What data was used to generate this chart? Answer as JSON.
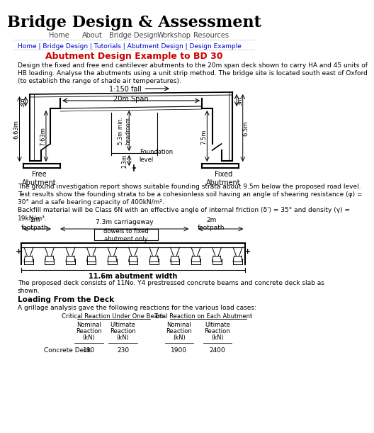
{
  "title": "Bridge Design & Assessment",
  "nav_items": [
    "Home",
    "About",
    "Bridge Design",
    "Workshop",
    "Resources"
  ],
  "breadcrumb": "Home | Bridge Design | Tutorials | Abutment Design | Design Example",
  "page_title": "Abutment Design Example to BD 30",
  "intro_text": "Design the fixed and free end cantilever abutments to the 20m span deck shown to carry HA and 45 units of\nHB loading. Analyse the abutments using a unit strip method. The bridge site is located south east of Oxford\n(to establish the range of shade air temperatures).",
  "ground_text1": "The ground investigation report shows suitable founding strata about 9.5m below the proposed road level.",
  "ground_text2": "Test results show the founding strata to be a cohesionless soil having an angle of shearing resistance (φ) =",
  "ground_text3": "30° and a safe bearing capacity of 400kN/m².",
  "ground_text4": "Backfill material will be Class 6N with an effective angle of internal friction (δ') = 35° and density (γ) =",
  "ground_text5": "19kN/m³.",
  "deck_text1": "The proposed deck consists of 11No. Y4 prestressed concrete beams and concrete deck slab as",
  "deck_text2": "shown.",
  "loading_title": "Loading From the Deck",
  "loading_text": "A grillage analysis gave the following reactions for the various load cases:",
  "table_header1": "Critical Reaction Under One Beam",
  "table_header2": "Total Reaction on Each Abutment",
  "table_sub": [
    "Nominal\nReaction\n(kN)",
    "Ultimate\nReaction\n(kN)",
    "Nominal\nReaction\n(kN)",
    "Ultimate\nReaction\n(kN)"
  ],
  "table_row_label": "Concrete Deck",
  "table_vals": [
    "180",
    "230",
    "1900",
    "2400"
  ],
  "bg_color": "#ffffff",
  "title_color": "#000000",
  "nav_color": "#444444",
  "breadcrumb_color": "#0000cc",
  "page_title_color": "#cc0000",
  "text_color": "#000000"
}
